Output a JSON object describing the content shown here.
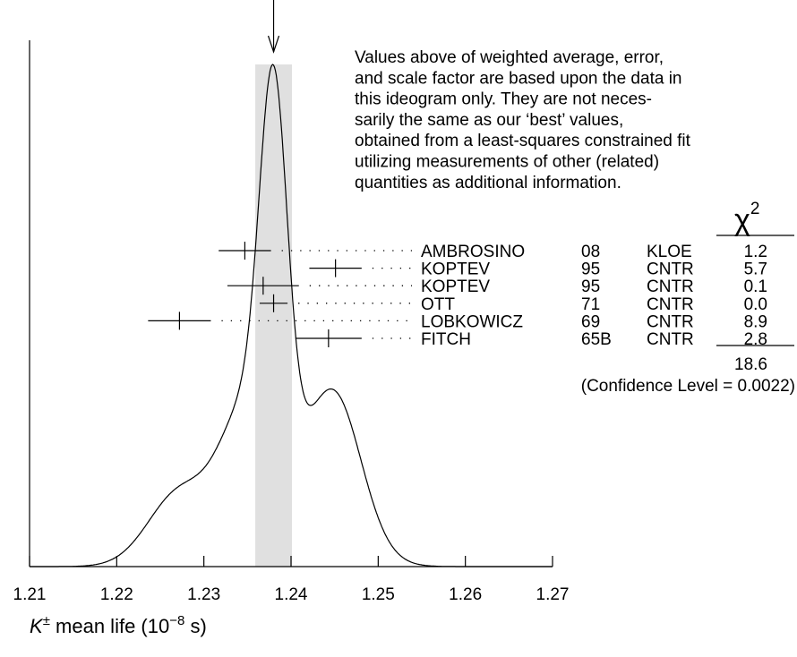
{
  "chart_data": {
    "type": "ideogram",
    "xlim": [
      1.21,
      1.27
    ],
    "xticks": [
      1.21,
      1.22,
      1.23,
      1.24,
      1.25,
      1.26,
      1.27
    ],
    "x_label": [
      "K",
      "±",
      " mean life (10",
      "−8",
      " s)"
    ],
    "weighted_average": 1.238,
    "average_error": 0.0021,
    "note": [
      "Values above of weighted average, error,",
      "and scale factor are based upon the data in",
      "this ideogram only.  They are not neces-",
      "sarily the same as our ‘best’ values,",
      "obtained from a least-squares constrained fit",
      "utilizing measurements of other (related)",
      "quantities as additional information."
    ],
    "chi2_header": [
      "χ",
      "2"
    ],
    "measurements": [
      {
        "name": "AMBROSINO",
        "year": "08",
        "experiment": "KLOE",
        "value": 1.2347,
        "error": 0.003,
        "chi2": "1.2"
      },
      {
        "name": "KOPTEV",
        "year": "95",
        "experiment": "CNTR",
        "value": 1.2451,
        "error": 0.003,
        "chi2": "5.7"
      },
      {
        "name": "KOPTEV",
        "year": "95",
        "experiment": "CNTR",
        "value": 1.2368,
        "error": 0.0041,
        "chi2": "0.1"
      },
      {
        "name": "OTT",
        "year": "71",
        "experiment": "CNTR",
        "value": 1.238,
        "error": 0.0016,
        "chi2": "0.0"
      },
      {
        "name": "LOBKOWICZ",
        "year": "69",
        "experiment": "CNTR",
        "value": 1.2272,
        "error": 0.0036,
        "chi2": "8.9"
      },
      {
        "name": "FITCH",
        "year": "65B",
        "experiment": "CNTR",
        "value": 1.2443,
        "error": 0.0038,
        "chi2": "2.8"
      }
    ],
    "chi2_total": "18.6",
    "confidence_level": "(Confidence Level = 0.0022)"
  }
}
